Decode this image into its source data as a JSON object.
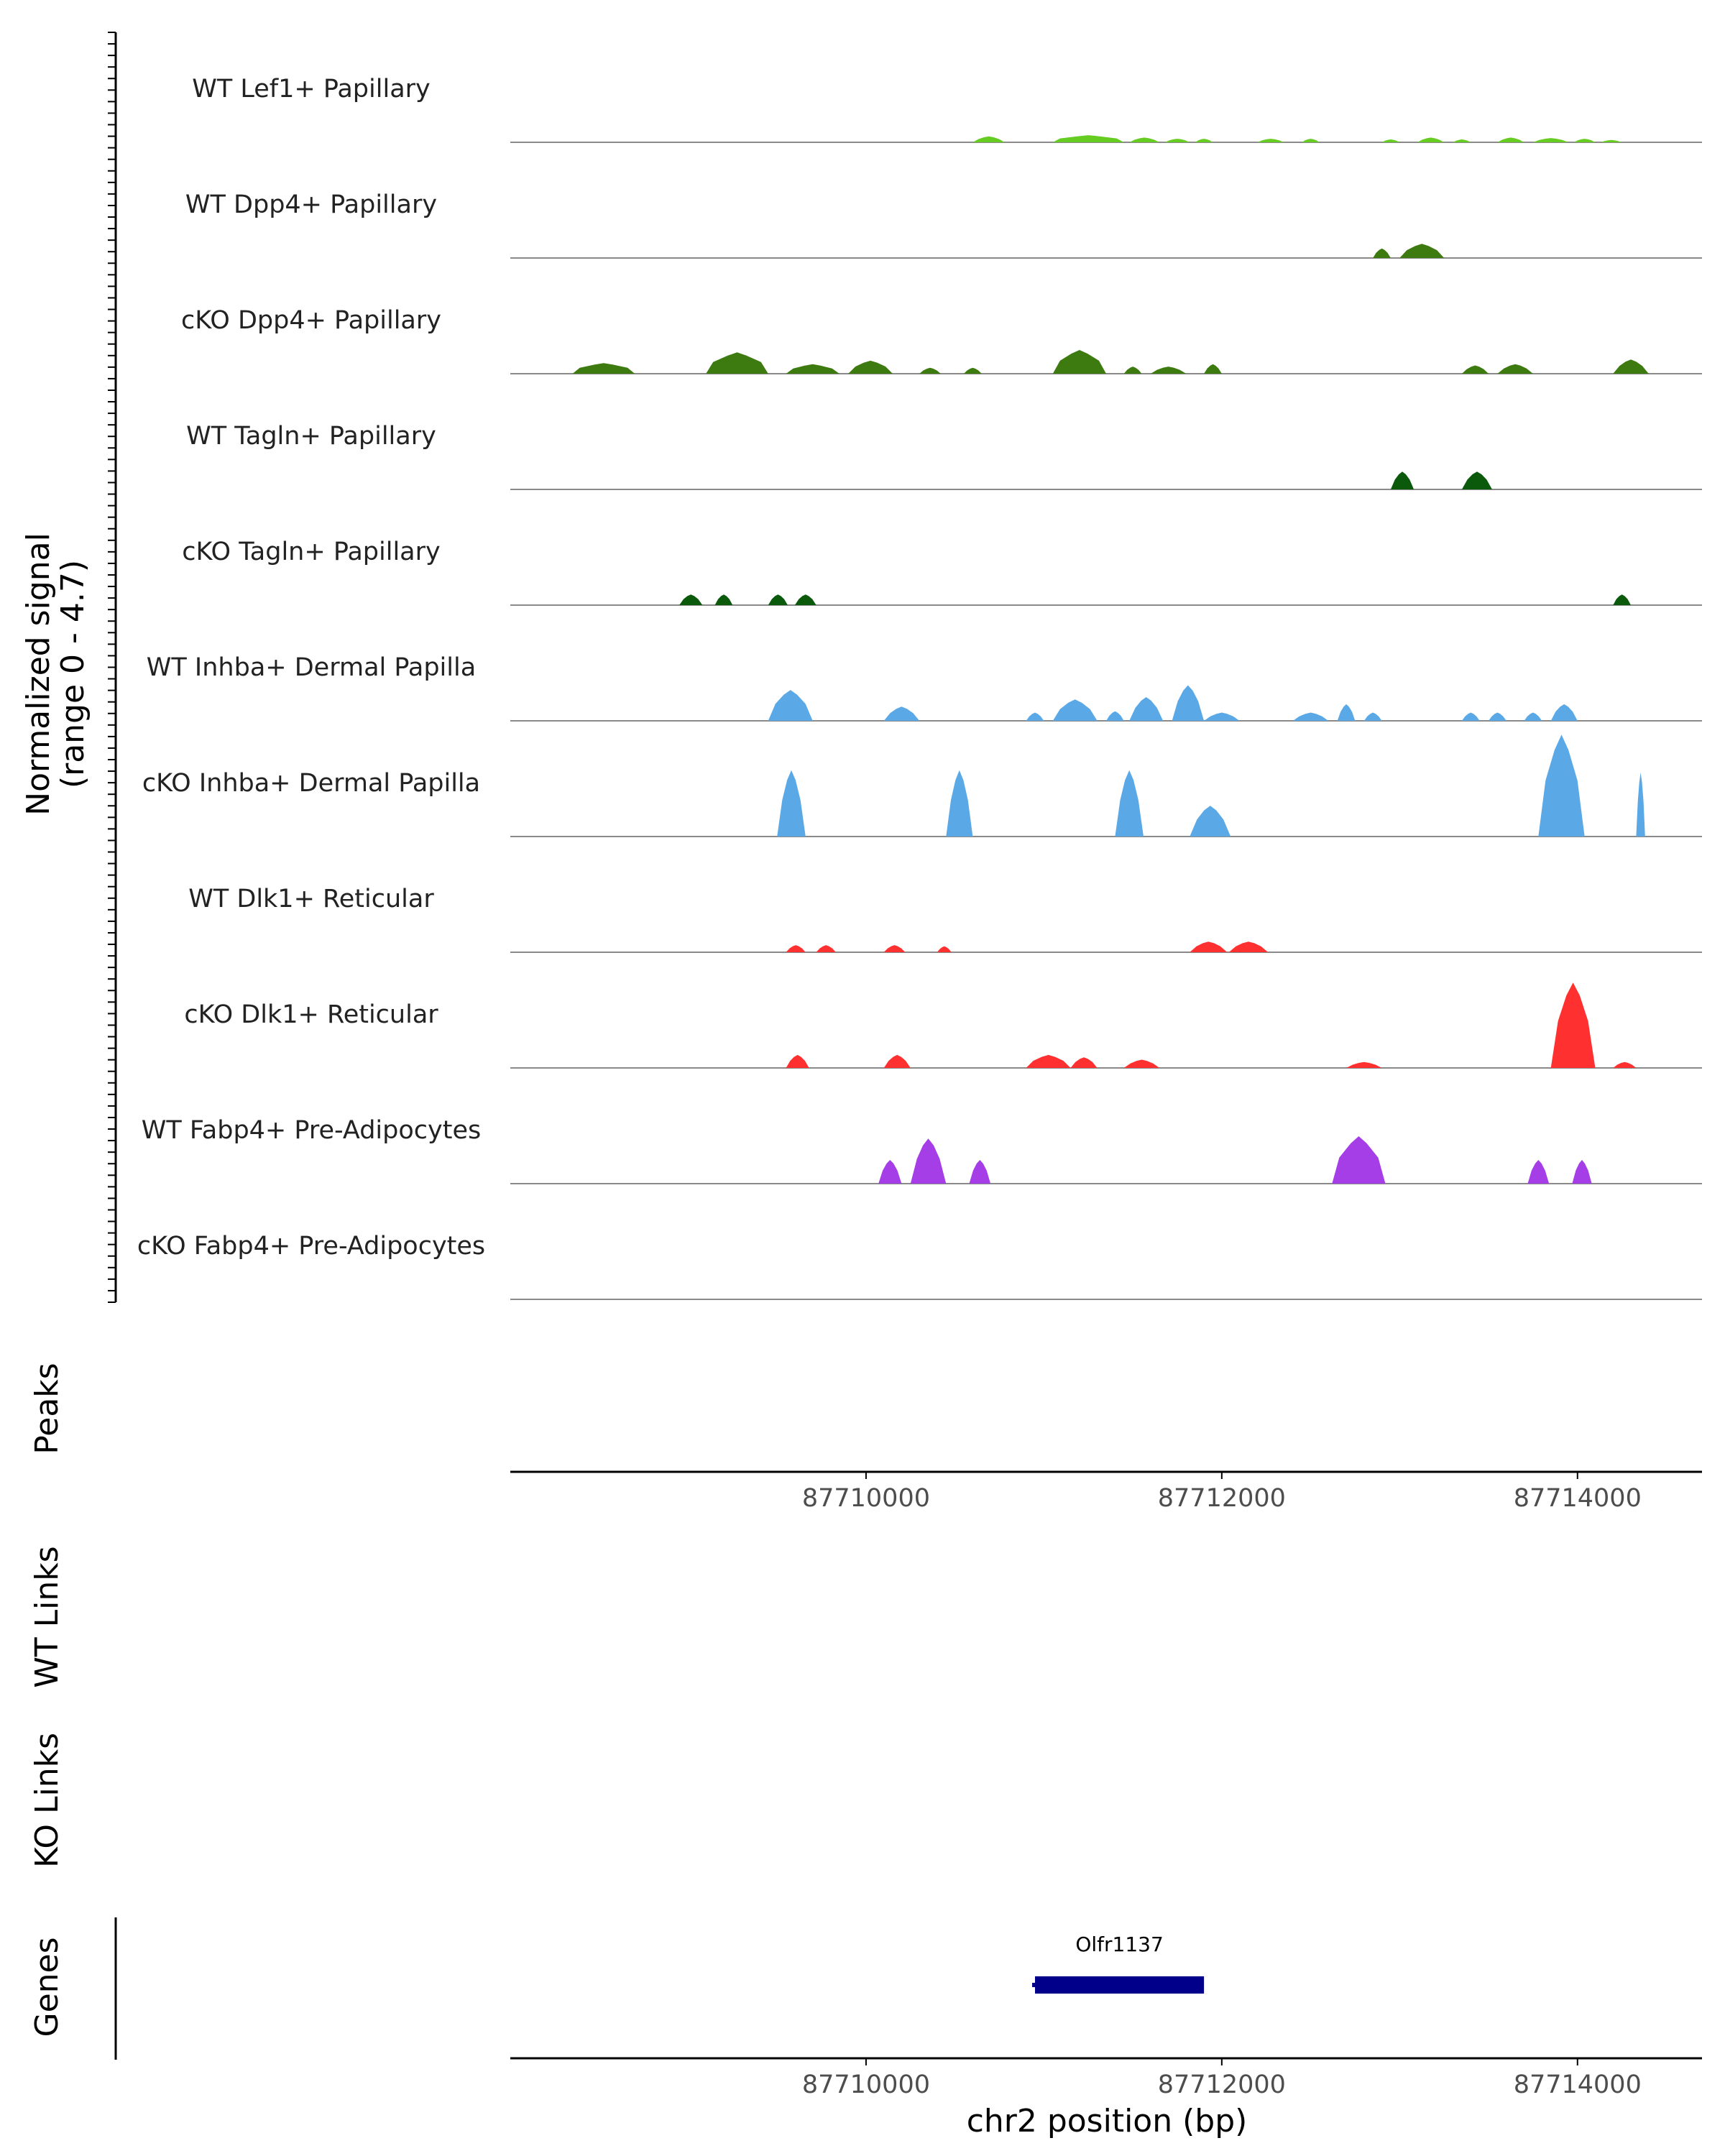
{
  "chart_data": {
    "type": "area",
    "title": "",
    "chromosome": "chr2",
    "xlabel": "chr2 position (bp)",
    "xlim": [
      87708000,
      87714700
    ],
    "xticks": [
      87710000,
      87712000,
      87714000
    ],
    "xtick_labels": [
      "87710000",
      "87712000",
      "87714000"
    ],
    "signal_ylabel_line1": "Normalized signal",
    "signal_ylabel_line2": "(range 0 - 4.7)",
    "ylim": [
      0,
      4.7
    ],
    "tracks": [
      {
        "name": "WT Lef1+ Papillary",
        "color": "#66cc22",
        "peaks": [
          [
            87710600,
            87710780,
            0.25
          ],
          [
            87711050,
            87711450,
            0.3
          ],
          [
            87711480,
            87711650,
            0.2
          ],
          [
            87711680,
            87711820,
            0.15
          ],
          [
            87711850,
            87711950,
            0.15
          ],
          [
            87712200,
            87712350,
            0.15
          ],
          [
            87712450,
            87712550,
            0.15
          ],
          [
            87712900,
            87713000,
            0.12
          ],
          [
            87713100,
            87713250,
            0.2
          ],
          [
            87713300,
            87713400,
            0.12
          ],
          [
            87713550,
            87713700,
            0.2
          ],
          [
            87713750,
            87713950,
            0.18
          ],
          [
            87713980,
            87714100,
            0.15
          ],
          [
            87714130,
            87714250,
            0.1
          ]
        ]
      },
      {
        "name": "WT Dpp4+ Papillary",
        "color": "#3d7a0f",
        "peaks": [
          [
            87712850,
            87712950,
            0.4
          ],
          [
            87713000,
            87713250,
            0.6
          ]
        ]
      },
      {
        "name": "cKO Dpp4+ Papillary",
        "color": "#3d7a0f",
        "peaks": [
          [
            87708350,
            87708700,
            0.45
          ],
          [
            87709100,
            87709450,
            0.9
          ],
          [
            87709550,
            87709850,
            0.4
          ],
          [
            87709900,
            87710150,
            0.55
          ],
          [
            87710300,
            87710420,
            0.25
          ],
          [
            87710550,
            87710650,
            0.25
          ],
          [
            87711050,
            87711350,
            1.0
          ],
          [
            87711450,
            87711550,
            0.3
          ],
          [
            87711600,
            87711800,
            0.3
          ],
          [
            87711900,
            87712000,
            0.4
          ],
          [
            87713350,
            87713500,
            0.35
          ],
          [
            87713550,
            87713750,
            0.4
          ],
          [
            87714200,
            87714400,
            0.6
          ]
        ]
      },
      {
        "name": "WT Tagln+ Papillary",
        "color": "#0b5a0b",
        "peaks": [
          [
            87712950,
            87713080,
            0.75
          ],
          [
            87713350,
            87713520,
            0.75
          ]
        ]
      },
      {
        "name": "cKO Tagln+ Papillary",
        "color": "#0b5a0b",
        "peaks": [
          [
            87708950,
            87709080,
            0.45
          ],
          [
            87709150,
            87709250,
            0.45
          ],
          [
            87709450,
            87709560,
            0.45
          ],
          [
            87709600,
            87709720,
            0.45
          ],
          [
            87714200,
            87714300,
            0.45
          ]
        ]
      },
      {
        "name": "WT Inhba+ Dermal Papilla",
        "color": "#5aa9e6",
        "peaks": [
          [
            87709450,
            87709700,
            1.3
          ],
          [
            87710100,
            87710300,
            0.6
          ],
          [
            87710900,
            87711000,
            0.35
          ],
          [
            87711050,
            87711300,
            0.9
          ],
          [
            87711350,
            87711450,
            0.4
          ],
          [
            87711480,
            87711670,
            1.0
          ],
          [
            87711720,
            87711900,
            1.5
          ],
          [
            87711900,
            87712100,
            0.35
          ],
          [
            87712400,
            87712600,
            0.35
          ],
          [
            87712650,
            87712750,
            0.7
          ],
          [
            87712800,
            87712900,
            0.35
          ],
          [
            87713350,
            87713450,
            0.35
          ],
          [
            87713500,
            87713600,
            0.35
          ],
          [
            87713700,
            87713800,
            0.35
          ],
          [
            87713850,
            87714000,
            0.7
          ]
        ]
      },
      {
        "name": "cKO Inhba+ Dermal Papilla",
        "color": "#5aa9e6",
        "peaks": [
          [
            87709500,
            87709660,
            2.8
          ],
          [
            87710450,
            87710600,
            2.8
          ],
          [
            87711400,
            87711560,
            2.8
          ],
          [
            87711820,
            87712050,
            1.3
          ],
          [
            87713780,
            87714040,
            4.3
          ],
          [
            87714330,
            87714380,
            2.7
          ]
        ]
      },
      {
        "name": "WT Dlk1+ Reticular",
        "color": "#ff3030",
        "peaks": [
          [
            87709550,
            87709660,
            0.3
          ],
          [
            87709720,
            87709830,
            0.3
          ],
          [
            87710100,
            87710220,
            0.3
          ],
          [
            87710400,
            87710480,
            0.25
          ],
          [
            87711820,
            87712030,
            0.45
          ],
          [
            87712040,
            87712260,
            0.45
          ]
        ]
      },
      {
        "name": "cKO Dlk1+ Reticular",
        "color": "#ff3030",
        "peaks": [
          [
            87709550,
            87709680,
            0.55
          ],
          [
            87710100,
            87710250,
            0.55
          ],
          [
            87710900,
            87711150,
            0.55
          ],
          [
            87711150,
            87711300,
            0.45
          ],
          [
            87711450,
            87711650,
            0.35
          ],
          [
            87712700,
            87712900,
            0.25
          ],
          [
            87713850,
            87714100,
            3.6
          ],
          [
            87714200,
            87714330,
            0.25
          ]
        ]
      },
      {
        "name": "WT Fabp4+ Pre-Adipocytes",
        "color": "#a53ee6",
        "peaks": [
          [
            87710070,
            87710200,
            1.0
          ],
          [
            87710250,
            87710450,
            1.9
          ],
          [
            87710580,
            87710700,
            1.0
          ],
          [
            87712620,
            87712920,
            2.0
          ],
          [
            87713720,
            87713840,
            1.0
          ],
          [
            87713970,
            87714080,
            1.0
          ]
        ]
      },
      {
        "name": "cKO Fabp4+ Pre-Adipocytes",
        "color": "#a53ee6",
        "peaks": []
      }
    ],
    "peaks_label": "Peaks",
    "wt_links_label": "WT Links",
    "ko_links_label": "KO Links",
    "genes_label": "Genes",
    "genes": [
      {
        "name": "Olfr1137",
        "start": 87710950,
        "end": 87711900,
        "color": "#00008b"
      }
    ]
  }
}
